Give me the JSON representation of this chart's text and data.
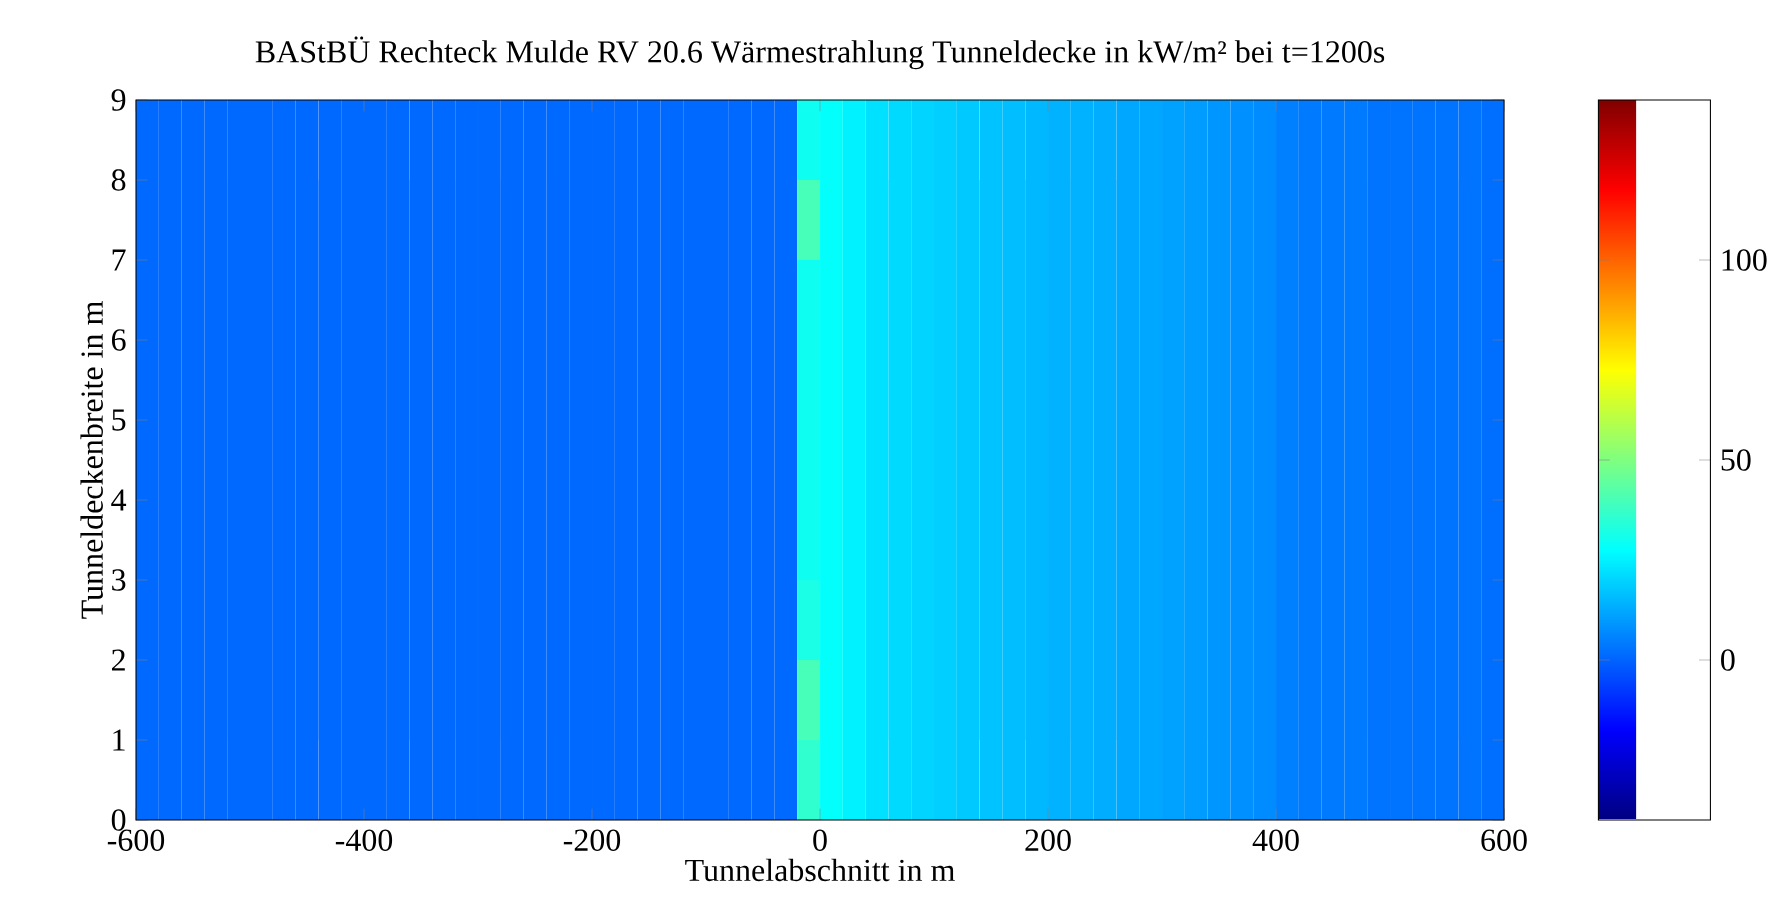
{
  "chart_data": {
    "type": "heatmap",
    "title": "BAStBÜ Rechteck Mulde RV 20.6 Wärmestrahlung Tunneldecke in kW/m² bei t=1200s",
    "xlabel": "Tunnelabschnitt in m",
    "ylabel": "Tunneldeckenbreite in m",
    "x": [
      -590,
      -570,
      -550,
      -530,
      -510,
      -490,
      -470,
      -450,
      -430,
      -410,
      -390,
      -370,
      -350,
      -330,
      -310,
      -290,
      -270,
      -250,
      -230,
      -210,
      -190,
      -170,
      -150,
      -130,
      -110,
      -90,
      -70,
      -50,
      -30,
      -10,
      10,
      30,
      50,
      70,
      90,
      110,
      130,
      150,
      170,
      190,
      210,
      230,
      250,
      270,
      290,
      310,
      330,
      350,
      370,
      390,
      410,
      430,
      450,
      470,
      490,
      510,
      530,
      550,
      570,
      590
    ],
    "y": [
      8.5,
      7.5,
      6.5,
      5.5,
      4.5,
      3.5,
      2.5,
      1.5,
      0.5
    ],
    "xlim": [
      -600,
      600
    ],
    "ylim": [
      0,
      9
    ],
    "xticks": [
      -600,
      -400,
      -200,
      0,
      200,
      400,
      600
    ],
    "yticks": [
      0,
      1,
      2,
      3,
      4,
      5,
      6,
      7,
      8,
      9
    ],
    "clim": [
      -40,
      140
    ],
    "cticks": [
      0,
      50,
      100
    ],
    "cells": [
      [
        1,
        1,
        1,
        1,
        1,
        1,
        1,
        1,
        1,
        1,
        1,
        1,
        1,
        1,
        1,
        1,
        1,
        1,
        1,
        1,
        1,
        1,
        1,
        1,
        1,
        1,
        1,
        1,
        1,
        30,
        28,
        25,
        22,
        21,
        20,
        19,
        18,
        17,
        16,
        15,
        14,
        14,
        13,
        12,
        12,
        11,
        10,
        9,
        8,
        7,
        5,
        4,
        4,
        4,
        3,
        3,
        3,
        3,
        3,
        2
      ],
      [
        1,
        1,
        1,
        1,
        1,
        1,
        1,
        1,
        1,
        1,
        1,
        1,
        1,
        1,
        1,
        1,
        1,
        1,
        1,
        1,
        1,
        1,
        1,
        1,
        1,
        1,
        1,
        1,
        1,
        40,
        28,
        25,
        22,
        21,
        20,
        19,
        18,
        17,
        16,
        15,
        14,
        14,
        13,
        12,
        12,
        11,
        10,
        9,
        8,
        7,
        5,
        4,
        4,
        4,
        3,
        3,
        3,
        3,
        3,
        2
      ],
      [
        1,
        1,
        1,
        1,
        1,
        1,
        1,
        1,
        1,
        1,
        1,
        1,
        1,
        1,
        1,
        1,
        1,
        1,
        1,
        1,
        1,
        1,
        1,
        1,
        1,
        1,
        1,
        1,
        1,
        30,
        28,
        25,
        22,
        21,
        20,
        19,
        18,
        17,
        16,
        15,
        14,
        14,
        13,
        12,
        12,
        11,
        10,
        9,
        8,
        7,
        5,
        4,
        4,
        4,
        3,
        3,
        3,
        3,
        3,
        2
      ],
      [
        1,
        1,
        1,
        1,
        1,
        1,
        1,
        1,
        1,
        1,
        1,
        1,
        1,
        1,
        1,
        1,
        1,
        1,
        1,
        1,
        1,
        1,
        1,
        1,
        1,
        1,
        1,
        1,
        1,
        30,
        28,
        25,
        22,
        21,
        20,
        19,
        18,
        17,
        16,
        15,
        14,
        14,
        13,
        12,
        12,
        11,
        10,
        9,
        8,
        7,
        5,
        4,
        4,
        4,
        3,
        3,
        3,
        3,
        3,
        2
      ],
      [
        1,
        1,
        1,
        1,
        1,
        1,
        1,
        1,
        1,
        1,
        1,
        1,
        1,
        1,
        1,
        1,
        1,
        1,
        1,
        1,
        1,
        1,
        1,
        1,
        1,
        1,
        1,
        1,
        1,
        30,
        28,
        25,
        22,
        21,
        20,
        19,
        18,
        17,
        16,
        15,
        14,
        14,
        13,
        12,
        12,
        11,
        10,
        9,
        8,
        7,
        5,
        4,
        4,
        4,
        3,
        3,
        3,
        3,
        3,
        2
      ],
      [
        1,
        1,
        1,
        1,
        1,
        1,
        1,
        1,
        1,
        1,
        1,
        1,
        1,
        1,
        1,
        1,
        1,
        1,
        1,
        1,
        1,
        1,
        1,
        1,
        1,
        1,
        1,
        1,
        1,
        30,
        28,
        25,
        22,
        21,
        20,
        19,
        18,
        17,
        16,
        15,
        14,
        14,
        13,
        12,
        12,
        11,
        10,
        9,
        8,
        7,
        5,
        4,
        4,
        4,
        3,
        3,
        3,
        3,
        3,
        2
      ],
      [
        1,
        1,
        1,
        1,
        1,
        1,
        1,
        1,
        1,
        1,
        1,
        1,
        1,
        1,
        1,
        1,
        1,
        1,
        1,
        1,
        1,
        1,
        1,
        1,
        1,
        1,
        1,
        1,
        1,
        32,
        28,
        25,
        22,
        21,
        20,
        19,
        18,
        17,
        16,
        15,
        14,
        14,
        13,
        12,
        12,
        11,
        10,
        9,
        8,
        7,
        5,
        4,
        4,
        4,
        3,
        3,
        3,
        3,
        3,
        2
      ],
      [
        1,
        1,
        1,
        1,
        1,
        1,
        1,
        1,
        1,
        1,
        1,
        1,
        1,
        1,
        1,
        1,
        1,
        1,
        1,
        1,
        1,
        1,
        1,
        1,
        1,
        1,
        1,
        1,
        1,
        40,
        28,
        25,
        22,
        21,
        20,
        19,
        18,
        17,
        16,
        15,
        14,
        14,
        13,
        12,
        12,
        11,
        10,
        9,
        8,
        7,
        5,
        4,
        4,
        4,
        3,
        3,
        3,
        3,
        3,
        2
      ],
      [
        1,
        1,
        1,
        1,
        1,
        1,
        1,
        1,
        1,
        1,
        1,
        1,
        1,
        1,
        1,
        1,
        1,
        1,
        1,
        1,
        1,
        1,
        1,
        1,
        1,
        1,
        1,
        1,
        1,
        36,
        28,
        25,
        22,
        21,
        20,
        19,
        18,
        17,
        16,
        15,
        14,
        14,
        13,
        12,
        12,
        11,
        10,
        9,
        8,
        7,
        5,
        4,
        4,
        4,
        3,
        3,
        3,
        3,
        3,
        2
      ]
    ]
  }
}
